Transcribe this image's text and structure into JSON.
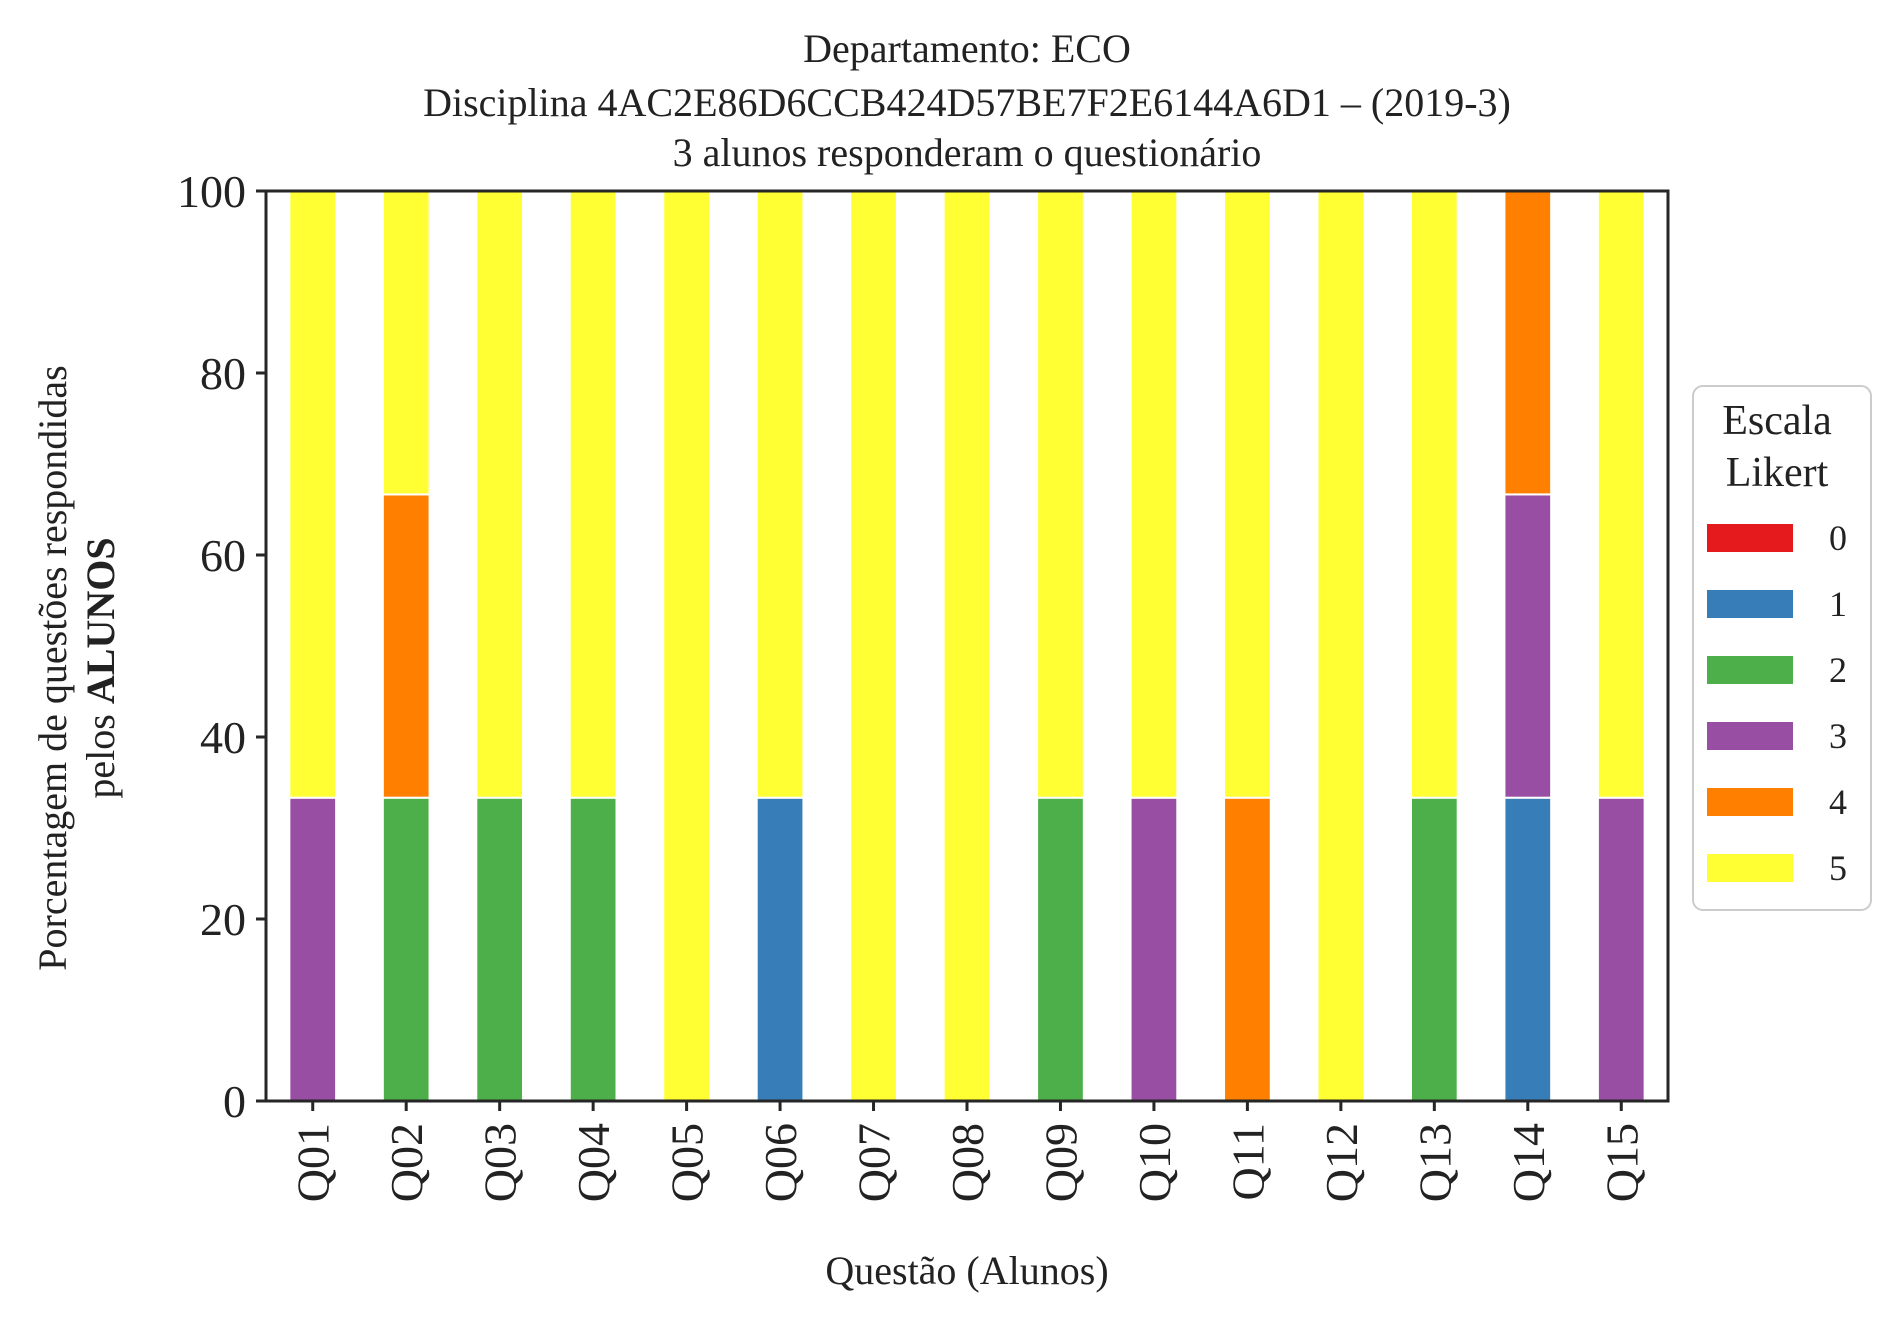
{
  "chart_data": {
    "type": "bar",
    "stacked": true,
    "title_lines": [
      "Departamento: ECO",
      "Disciplina 4AC2E86D6CCB424D57BE7F2E6144A6D1 – (2019-3)",
      "3 alunos responderam o questionário"
    ],
    "xlabel": "Questão (Alunos)",
    "ylabel_line1": "Porcentagem de questões respondidas",
    "ylabel_line2_prefix": "pelos ",
    "ylabel_line2_bold": "ALUNOS",
    "ylim": [
      0,
      100
    ],
    "yticks": [
      "0",
      "20",
      "40",
      "60",
      "80",
      "100"
    ],
    "grid": false,
    "legend": {
      "title_line1": "Escala",
      "title_line2": "Likert",
      "position": "right-center"
    },
    "categories": [
      "Q01",
      "Q02",
      "Q03",
      "Q04",
      "Q05",
      "Q06",
      "Q07",
      "Q08",
      "Q09",
      "Q10",
      "Q11",
      "Q12",
      "Q13",
      "Q14",
      "Q15"
    ],
    "series": [
      {
        "name": "0",
        "color": "#e41a1c",
        "values": [
          0,
          0,
          0,
          0,
          0,
          0,
          0,
          0,
          0,
          0,
          0,
          0,
          0,
          0,
          0
        ]
      },
      {
        "name": "1",
        "color": "#377eb8",
        "values": [
          0,
          0,
          0,
          0,
          0,
          33.33,
          0,
          0,
          0,
          0,
          0,
          0,
          0,
          33.33,
          0
        ]
      },
      {
        "name": "2",
        "color": "#4daf4a",
        "values": [
          0,
          33.33,
          33.33,
          33.33,
          0,
          0,
          0,
          0,
          33.33,
          0,
          0,
          0,
          33.33,
          0,
          0
        ]
      },
      {
        "name": "3",
        "color": "#984ea3",
        "values": [
          33.33,
          0,
          0,
          0,
          0,
          0,
          0,
          0,
          0,
          33.33,
          0,
          0,
          0,
          33.33,
          33.33
        ]
      },
      {
        "name": "4",
        "color": "#ff7f00",
        "values": [
          0,
          33.33,
          0,
          0,
          0,
          0,
          0,
          0,
          0,
          0,
          33.33,
          0,
          0,
          33.33,
          0
        ]
      },
      {
        "name": "5",
        "color": "#ffff33",
        "values": [
          66.67,
          33.33,
          66.67,
          66.67,
          100,
          66.67,
          100,
          100,
          66.67,
          66.67,
          66.67,
          100,
          66.67,
          0,
          66.67
        ]
      }
    ]
  }
}
